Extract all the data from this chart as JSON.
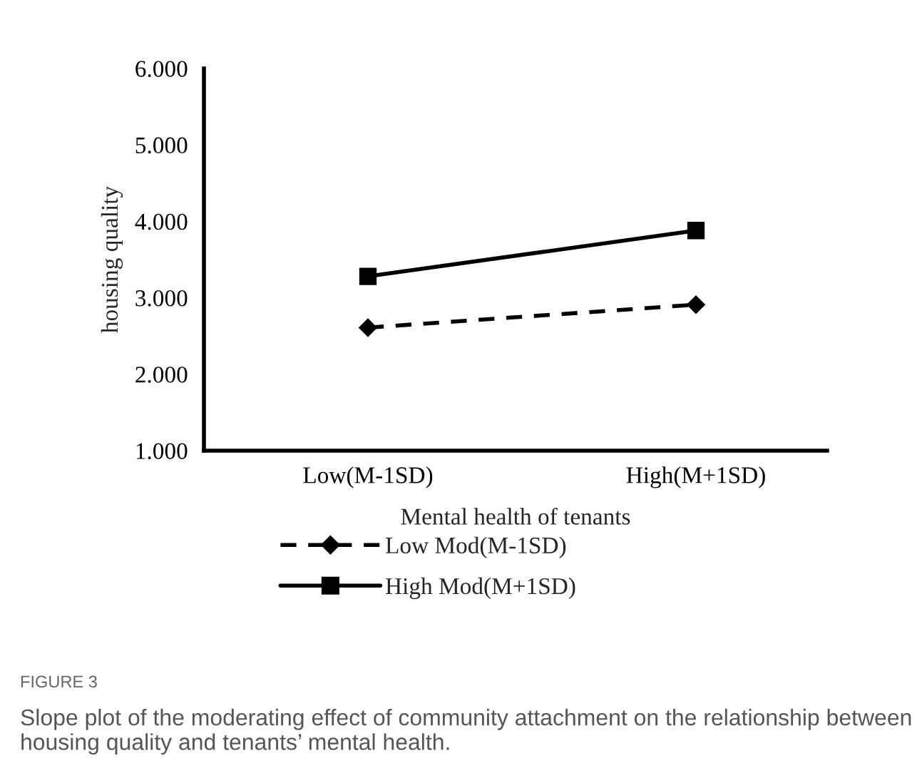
{
  "chart_data": {
    "type": "line",
    "xlabel": "Mental health of tenants",
    "ylabel": "housing quality",
    "categories": [
      "Low(M-1SD)",
      "High(M+1SD)"
    ],
    "series": [
      {
        "name": "Low Mod(M-1SD)",
        "color": "#000000",
        "values": [
          2.61,
          2.91
        ],
        "marker": "diamond",
        "line_style": "dashed"
      },
      {
        "name": "High Mod(M+1SD)",
        "color": "#000000",
        "values": [
          3.28,
          3.88
        ],
        "marker": "square",
        "line_style": "solid"
      }
    ],
    "ylim": [
      1,
      6
    ],
    "yticks": [
      {
        "value": 1,
        "label": "1.000"
      },
      {
        "value": 2,
        "label": "2.000"
      },
      {
        "value": 3,
        "label": "3.000"
      },
      {
        "value": 4,
        "label": "4.000"
      },
      {
        "value": 5,
        "label": "5.000"
      },
      {
        "value": 6,
        "label": "6.000"
      }
    ],
    "grid": false,
    "legend": "bottom",
    "annotations": [
      "FIGURE 3",
      "Slope plot of the moderating effect of community attachment on the relationship between housing quality and tenants’ mental health."
    ]
  }
}
